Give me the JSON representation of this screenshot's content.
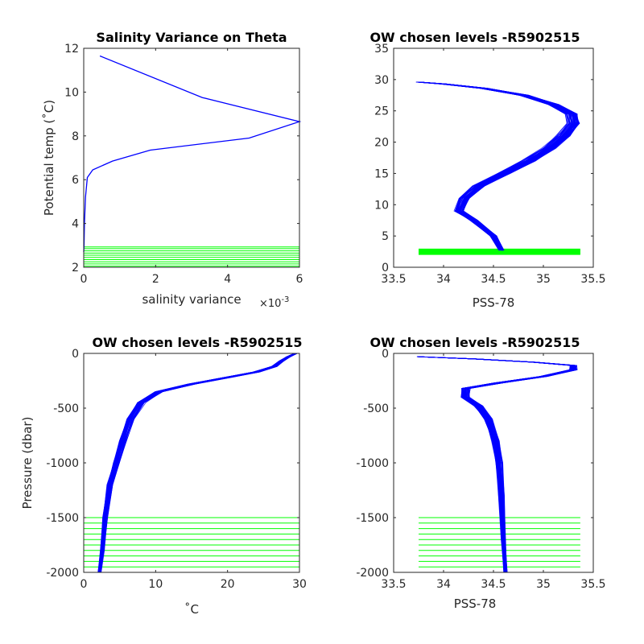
{
  "chart_data": [
    {
      "type": "line",
      "title": "Salinity Variance on Theta",
      "xlabel": "salinity variance",
      "x_exponent_label": "×10",
      "x_exponent": "-3",
      "ylabel": "Potential temp (˚C)",
      "xlim": [
        0,
        0.006
      ],
      "ylim": [
        2,
        12
      ],
      "xticks": [
        0,
        0.002,
        0.004,
        0.006
      ],
      "xtick_labels": [
        "0",
        "2",
        "4",
        "6"
      ],
      "yticks": [
        2,
        4,
        6,
        8,
        10,
        12
      ],
      "ytick_labels": [
        "2",
        "4",
        "6",
        "8",
        "10",
        "12"
      ],
      "series": [
        {
          "color": "#0000ff",
          "points": [
            [
              0.00045,
              11.65
            ],
            [
              0.0033,
              9.75
            ],
            [
              0.006,
              8.65
            ],
            [
              0.0046,
              7.9
            ],
            [
              0.00185,
              7.35
            ],
            [
              0.0008,
              6.85
            ],
            [
              0.00025,
              6.45
            ],
            [
              0.0001,
              6.1
            ],
            [
              5e-05,
              5.2
            ],
            [
              2e-05,
              4.0
            ],
            [
              1e-05,
              3.0
            ],
            [
              0.0,
              2.7
            ]
          ]
        }
      ],
      "hlines": {
        "color": "#00ff00",
        "y": [
          2.05,
          2.15,
          2.25,
          2.35,
          2.45,
          2.55,
          2.65,
          2.75,
          2.85,
          2.93
        ],
        "xrange": [
          0,
          0.006
        ]
      }
    },
    {
      "type": "line",
      "title": "OW chosen levels -R5902515",
      "xlabel": "PSS-78",
      "ylabel": "",
      "xlim": [
        33.5,
        35.5
      ],
      "ylim": [
        0,
        35
      ],
      "xticks": [
        33.5,
        34,
        34.5,
        35,
        35.5
      ],
      "xtick_labels": [
        "33.5",
        "34",
        "34.5",
        "35",
        "35.5"
      ],
      "yticks": [
        0,
        5,
        10,
        15,
        20,
        25,
        30,
        35
      ],
      "ytick_labels": [
        "0",
        "5",
        "10",
        "15",
        "20",
        "25",
        "30",
        "35"
      ],
      "series": [
        {
          "color": "#0000ff",
          "profile": [
            [
              34.58,
              2.7
            ],
            [
              34.5,
              5
            ],
            [
              34.3,
              7.5
            ],
            [
              34.15,
              9
            ],
            [
              34.2,
              11
            ],
            [
              34.35,
              13
            ],
            [
              34.6,
              15
            ],
            [
              34.85,
              17
            ],
            [
              35.05,
              19
            ],
            [
              35.2,
              21
            ],
            [
              35.3,
              23
            ],
            [
              35.28,
              24.5
            ],
            [
              35.1,
              26
            ],
            [
              34.8,
              27.5
            ],
            [
              34.4,
              28.6
            ],
            [
              34.0,
              29.3
            ],
            [
              33.75,
              29.6
            ]
          ],
          "spread": 0.06,
          "count": 60
        }
      ],
      "hlines": {
        "color": "#00ff00",
        "y": [
          2.1,
          2.25,
          2.4,
          2.55,
          2.7,
          2.85
        ],
        "xrange": [
          33.75,
          35.37
        ]
      }
    },
    {
      "type": "line",
      "title": "OW chosen levels -R5902515",
      "xlabel": "˚C",
      "ylabel": "Pressure (dbar)",
      "xlim": [
        0,
        30
      ],
      "ylim": [
        -2000,
        0
      ],
      "xticks": [
        0,
        10,
        20,
        30
      ],
      "xtick_labels": [
        "0",
        "10",
        "20",
        "30"
      ],
      "yticks": [
        -2000,
        -1500,
        -1000,
        -500,
        0
      ],
      "ytick_labels": [
        "-2000",
        "-1500",
        "-1000",
        "-500",
        "0"
      ],
      "series": [
        {
          "color": "#0000ff",
          "profile": [
            [
              2.2,
              -2000
            ],
            [
              2.6,
              -1800
            ],
            [
              3.0,
              -1500
            ],
            [
              3.7,
              -1200
            ],
            [
              4.6,
              -1000
            ],
            [
              5.5,
              -800
            ],
            [
              6.5,
              -600
            ],
            [
              8.0,
              -450
            ],
            [
              10.5,
              -350
            ],
            [
              15.0,
              -280
            ],
            [
              20.0,
              -220
            ],
            [
              24.0,
              -170
            ],
            [
              26.5,
              -120
            ],
            [
              27.5,
              -70
            ],
            [
              28.5,
              -30
            ],
            [
              29.5,
              0
            ]
          ],
          "spread": 0.5,
          "count": 60
        }
      ],
      "hlines": {
        "color": "#00ff00",
        "y": [
          -1500,
          -1550,
          -1600,
          -1650,
          -1700,
          -1750,
          -1800,
          -1850,
          -1900,
          -1950
        ],
        "xrange": [
          0,
          30
        ]
      }
    },
    {
      "type": "line",
      "title": "OW chosen levels -R5902515",
      "xlabel": "PSS-78",
      "ylabel": "",
      "xlim": [
        33.5,
        35.5
      ],
      "ylim": [
        -2000,
        0
      ],
      "xticks": [
        33.5,
        34,
        34.5,
        35,
        35.5
      ],
      "xtick_labels": [
        "33.5",
        "34",
        "34.5",
        "35",
        "35.5"
      ],
      "yticks": [
        -2000,
        -1500,
        -1000,
        -500,
        0
      ],
      "ytick_labels": [
        "-2000",
        "-1500",
        "-1000",
        "-500",
        "0"
      ],
      "series": [
        {
          "color": "#0000ff",
          "profile": [
            [
              34.62,
              -2000
            ],
            [
              34.6,
              -1700
            ],
            [
              34.58,
              -1300
            ],
            [
              34.56,
              -1000
            ],
            [
              34.52,
              -800
            ],
            [
              34.45,
              -600
            ],
            [
              34.35,
              -480
            ],
            [
              34.22,
              -400
            ],
            [
              34.22,
              -320
            ],
            [
              34.55,
              -270
            ],
            [
              35.0,
              -210
            ],
            [
              35.3,
              -150
            ],
            [
              35.3,
              -110
            ],
            [
              34.9,
              -80
            ],
            [
              34.3,
              -50
            ],
            [
              33.75,
              -30
            ]
          ],
          "spread": 0.04,
          "count": 60
        }
      ],
      "hlines": {
        "color": "#00ff00",
        "y": [
          -1500,
          -1550,
          -1600,
          -1650,
          -1700,
          -1750,
          -1800,
          -1850,
          -1900,
          -1950
        ],
        "xrange": [
          33.75,
          35.37
        ]
      }
    }
  ]
}
